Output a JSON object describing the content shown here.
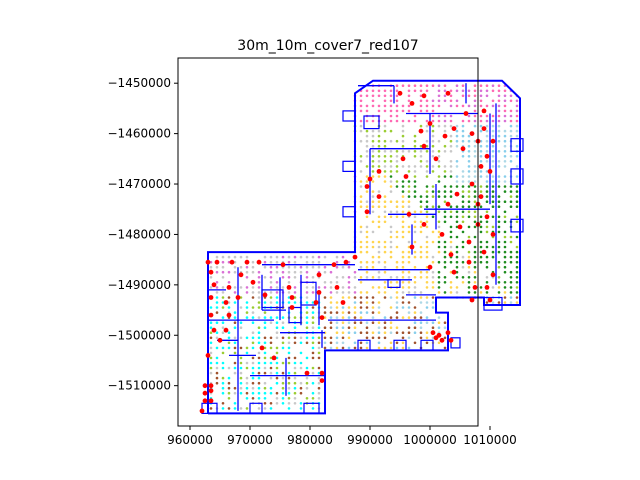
{
  "chart_data": {
    "type": "scatter",
    "title": "30m_10m_cover7_red107",
    "xlabel": "",
    "ylabel": "",
    "xlim": [
      958000,
      1008000
    ],
    "ylim": [
      -1518000,
      -1445000
    ],
    "x_ticks": [
      960000,
      970000,
      980000,
      990000,
      1000000,
      1010000
    ],
    "x_tick_labels": [
      "960000",
      "970000",
      "980000",
      "990000",
      "1000000",
      "1010000"
    ],
    "y_ticks": [
      -1450000,
      -1460000,
      -1470000,
      -1480000,
      -1490000,
      -1500000,
      -1510000
    ],
    "y_tick_labels": [
      "−1450000",
      "−1460000",
      "−1470000",
      "−1480000",
      "−1490000",
      "−1500000",
      "−1510000"
    ],
    "grid": false,
    "legend": "none",
    "colors": {
      "outline": "#0000ff",
      "red_points": "#ff0000",
      "cover_palette": [
        "#ffd54f",
        "#1e8c1e",
        "#ff69b4",
        "#87ceeb",
        "#add8e6",
        "#c8c8c8",
        "#9acd32",
        "#00ffff",
        "#a0522d",
        "#da70d6"
      ]
    },
    "red_points": [
      [
        995000,
        -1452000
      ],
      [
        997000,
        -1454000
      ],
      [
        999000,
        -1452500
      ],
      [
        1003000,
        -1452000
      ],
      [
        1006000,
        -1456000
      ],
      [
        1009000,
        -1455500
      ],
      [
        1000000,
        -1458000
      ],
      [
        1004000,
        -1459000
      ],
      [
        1009000,
        -1459000
      ],
      [
        998500,
        -1459500
      ],
      [
        1002500,
        -1460500
      ],
      [
        1007000,
        -1460000
      ],
      [
        1010500,
        -1461500
      ],
      [
        1008000,
        -1461500
      ],
      [
        999000,
        -1462500
      ],
      [
        1005500,
        -1463000
      ],
      [
        1009500,
        -1464500
      ],
      [
        995500,
        -1465000
      ],
      [
        1001000,
        -1465000
      ],
      [
        1008500,
        -1466500
      ],
      [
        991500,
        -1467500
      ],
      [
        1010000,
        -1467500
      ],
      [
        996000,
        -1468500
      ],
      [
        990000,
        -1469000
      ],
      [
        989500,
        -1470500
      ],
      [
        1007000,
        -1470000
      ],
      [
        1004500,
        -1472000
      ],
      [
        991500,
        -1472500
      ],
      [
        1008500,
        -1472500
      ],
      [
        1003000,
        -1474000
      ],
      [
        1008000,
        -1474000
      ],
      [
        989500,
        -1475500
      ],
      [
        996500,
        -1476000
      ],
      [
        1009500,
        -1476500
      ],
      [
        999000,
        -1478000
      ],
      [
        1005000,
        -1478500
      ],
      [
        1008000,
        -1478000
      ],
      [
        1002000,
        -1480000
      ],
      [
        1010500,
        -1480000
      ],
      [
        1006500,
        -1481500
      ],
      [
        997000,
        -1482500
      ],
      [
        1003500,
        -1484000
      ],
      [
        1009000,
        -1483500
      ],
      [
        987500,
        -1484500
      ],
      [
        1006500,
        -1485500
      ],
      [
        1000000,
        -1486500
      ],
      [
        1004000,
        -1487500
      ],
      [
        1010500,
        -1488000
      ],
      [
        1007500,
        -1490500
      ],
      [
        1009500,
        -1490500
      ],
      [
        1010000,
        -1493000
      ],
      [
        1007000,
        -1493000
      ],
      [
        963000,
        -1485500
      ],
      [
        964500,
        -1485500
      ],
      [
        967000,
        -1485500
      ],
      [
        969500,
        -1485500
      ],
      [
        971500,
        -1485500
      ],
      [
        975500,
        -1486000
      ],
      [
        984000,
        -1486000
      ],
      [
        986000,
        -1485500
      ],
      [
        981500,
        -1488000
      ],
      [
        968500,
        -1488000
      ],
      [
        963500,
        -1487500
      ],
      [
        970500,
        -1489500
      ],
      [
        964000,
        -1490000
      ],
      [
        966500,
        -1490500
      ],
      [
        976500,
        -1490500
      ],
      [
        977000,
        -1492500
      ],
      [
        984500,
        -1490500
      ],
      [
        981500,
        -1491500
      ],
      [
        972500,
        -1492000
      ],
      [
        985500,
        -1493500
      ],
      [
        963500,
        -1492500
      ],
      [
        968000,
        -1492500
      ],
      [
        981000,
        -1493500
      ],
      [
        966000,
        -1493500
      ],
      [
        977000,
        -1494500
      ],
      [
        963500,
        -1496000
      ],
      [
        966500,
        -1496000
      ],
      [
        982000,
        -1496500
      ],
      [
        964000,
        -1499000
      ],
      [
        966000,
        -1499000
      ],
      [
        965000,
        -1501000
      ],
      [
        972000,
        -1502500
      ],
      [
        963000,
        -1504000
      ],
      [
        974000,
        -1504500
      ],
      [
        982000,
        -1507500
      ],
      [
        979500,
        -1507500
      ],
      [
        982000,
        -1509000
      ],
      [
        962500,
        -1510000
      ],
      [
        963500,
        -1510000
      ],
      [
        962500,
        -1511500
      ],
      [
        963500,
        -1511000
      ],
      [
        962500,
        -1513000
      ],
      [
        963500,
        -1513000
      ],
      [
        962000,
        -1515000
      ],
      [
        1000500,
        -1499500
      ],
      [
        1001500,
        -1500000
      ],
      [
        1002000,
        -1501000
      ],
      [
        1003000,
        -1499500
      ],
      [
        1003500,
        -1501000
      ],
      [
        1001000,
        -1500500
      ]
    ]
  }
}
